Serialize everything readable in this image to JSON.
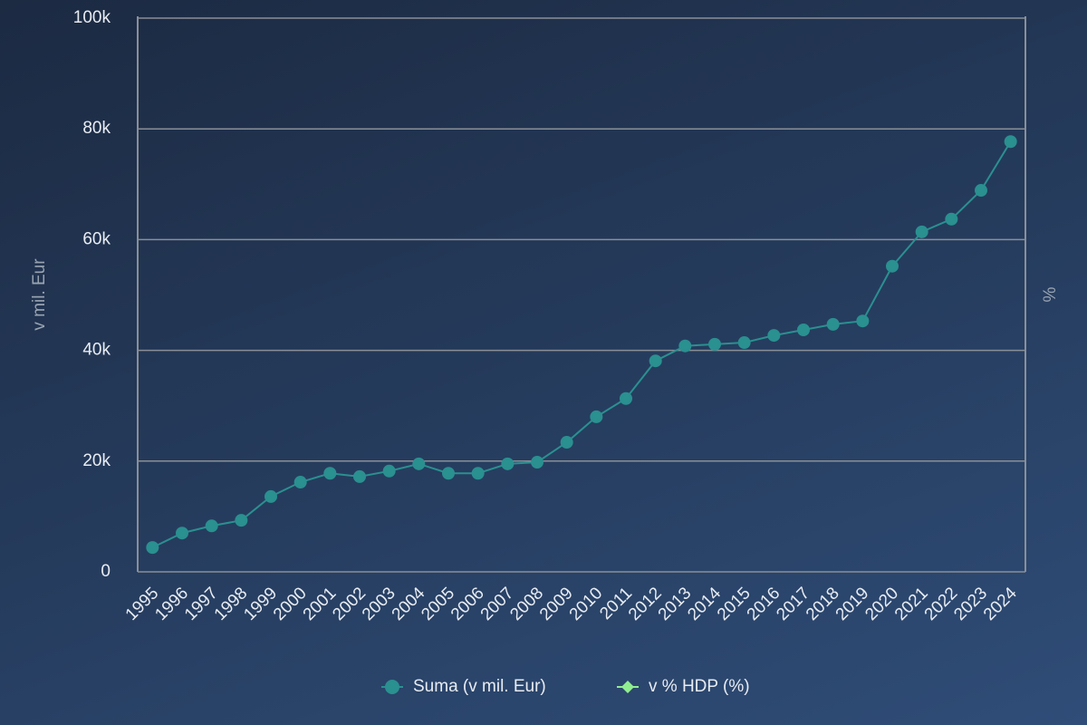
{
  "chart_data": {
    "type": "line",
    "categories": [
      "1995",
      "1996",
      "1997",
      "1998",
      "1999",
      "2000",
      "2001",
      "2002",
      "2003",
      "2004",
      "2005",
      "2006",
      "2007",
      "2008",
      "2009",
      "2010",
      "2011",
      "2012",
      "2013",
      "2014",
      "2015",
      "2016",
      "2017",
      "2018",
      "2019",
      "2020",
      "2021",
      "2022",
      "2023",
      "2024"
    ],
    "series": [
      {
        "name": "Suma (v mil. Eur)",
        "color": "#2a9090",
        "values": [
          4400,
          7000,
          8300,
          9300,
          13600,
          16200,
          17800,
          17200,
          18200,
          19500,
          17800,
          17800,
          19500,
          19800,
          23400,
          28000,
          31300,
          38100,
          40800,
          41100,
          41400,
          42700,
          43700,
          44700,
          45300,
          55200,
          61400,
          63700,
          68900,
          77700
        ]
      },
      {
        "name": "v % HDP (%)",
        "color": "#90ee90",
        "axis": "y2",
        "values": [
          null,
          null,
          null,
          null,
          null,
          null,
          null,
          null,
          null,
          null,
          null,
          null,
          null,
          null,
          null,
          null,
          null,
          null,
          null,
          null,
          null,
          null,
          null,
          null,
          null,
          null,
          null,
          null,
          null,
          null
        ]
      }
    ],
    "ylabel": "v mil. Eur",
    "y2label": "%",
    "ylim": [
      0,
      100000
    ],
    "yticks": [
      0,
      {
        "value": 20000,
        "label": "20k"
      },
      {
        "value": 40000,
        "label": "40k"
      },
      {
        "value": 60000,
        "label": "60k"
      },
      {
        "value": 80000,
        "label": "80k"
      },
      {
        "value": 100000,
        "label": "100k"
      }
    ],
    "grid": true
  }
}
